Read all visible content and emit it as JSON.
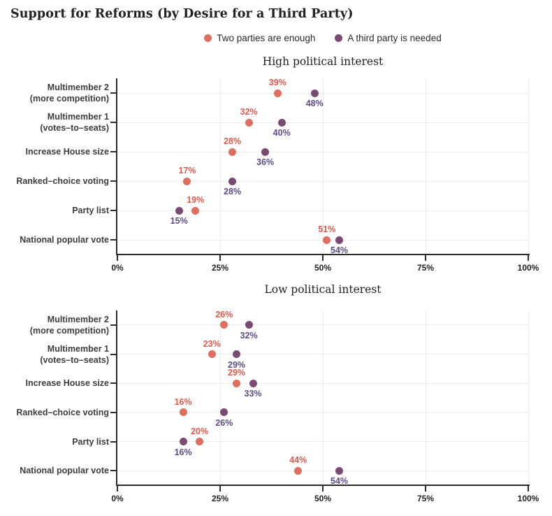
{
  "header": {
    "title": "Support for Reforms (by Desire for a Third Party)"
  },
  "legend": {
    "items": [
      {
        "label": "Two parties are enough",
        "color": "#de6e5d",
        "label_color": "#e05a4b"
      },
      {
        "label": "A third party is needed",
        "color": "#7b4a73",
        "label_color": "#5e4a8a"
      }
    ]
  },
  "colors": {
    "axis": "#2b2b2b",
    "grid": "#ececec",
    "category_label": "#3d3d3d",
    "tick_label": "#1f1f1f",
    "background": "#ffffff",
    "series_two_parties": "#de6e5d",
    "series_third_party": "#7b4a73"
  },
  "chart_data": [
    {
      "type": "scatter",
      "title": "High political interest",
      "categories": [
        [
          "Multimember 2",
          "(more competition)"
        ],
        [
          "Multimember 1",
          "(votes–to–seats)"
        ],
        [
          "Increase House size"
        ],
        [
          "Ranked–choice voting"
        ],
        [
          "Party list"
        ],
        [
          "National popular vote"
        ]
      ],
      "series": [
        {
          "name": "Two parties are enough",
          "color": "#de6e5d",
          "label_color": "#e05a4b",
          "label_position": "above",
          "values": [
            39,
            32,
            28,
            17,
            19,
            51
          ]
        },
        {
          "name": "A third party is needed",
          "color": "#7b4a73",
          "label_color": "#5e4a8a",
          "label_position": "below",
          "values": [
            48,
            40,
            36,
            28,
            15,
            54
          ]
        }
      ],
      "xlim": [
        0,
        100
      ],
      "xticks": [
        0,
        25,
        50,
        75,
        100
      ],
      "xtick_labels": [
        "0%",
        "25%",
        "50%",
        "75%",
        "100%"
      ],
      "grid": true,
      "value_suffix": "%",
      "legend_position": "top"
    },
    {
      "type": "scatter",
      "title": "Low political interest",
      "categories": [
        [
          "Multimember 2",
          "(more competition)"
        ],
        [
          "Multimember 1",
          "(votes–to–seats)"
        ],
        [
          "Increase House size"
        ],
        [
          "Ranked–choice voting"
        ],
        [
          "Party list"
        ],
        [
          "National popular vote"
        ]
      ],
      "series": [
        {
          "name": "Two parties are enough",
          "color": "#de6e5d",
          "label_color": "#e05a4b",
          "label_position": "above",
          "values": [
            26,
            23,
            29,
            16,
            20,
            44
          ]
        },
        {
          "name": "A third party is needed",
          "color": "#7b4a73",
          "label_color": "#5e4a8a",
          "label_position": "below",
          "values": [
            32,
            29,
            33,
            26,
            16,
            54
          ]
        }
      ],
      "xlim": [
        0,
        100
      ],
      "xticks": [
        0,
        25,
        50,
        75,
        100
      ],
      "xtick_labels": [
        "0%",
        "25%",
        "50%",
        "75%",
        "100%"
      ],
      "grid": true,
      "value_suffix": "%",
      "legend_position": "top"
    }
  ]
}
